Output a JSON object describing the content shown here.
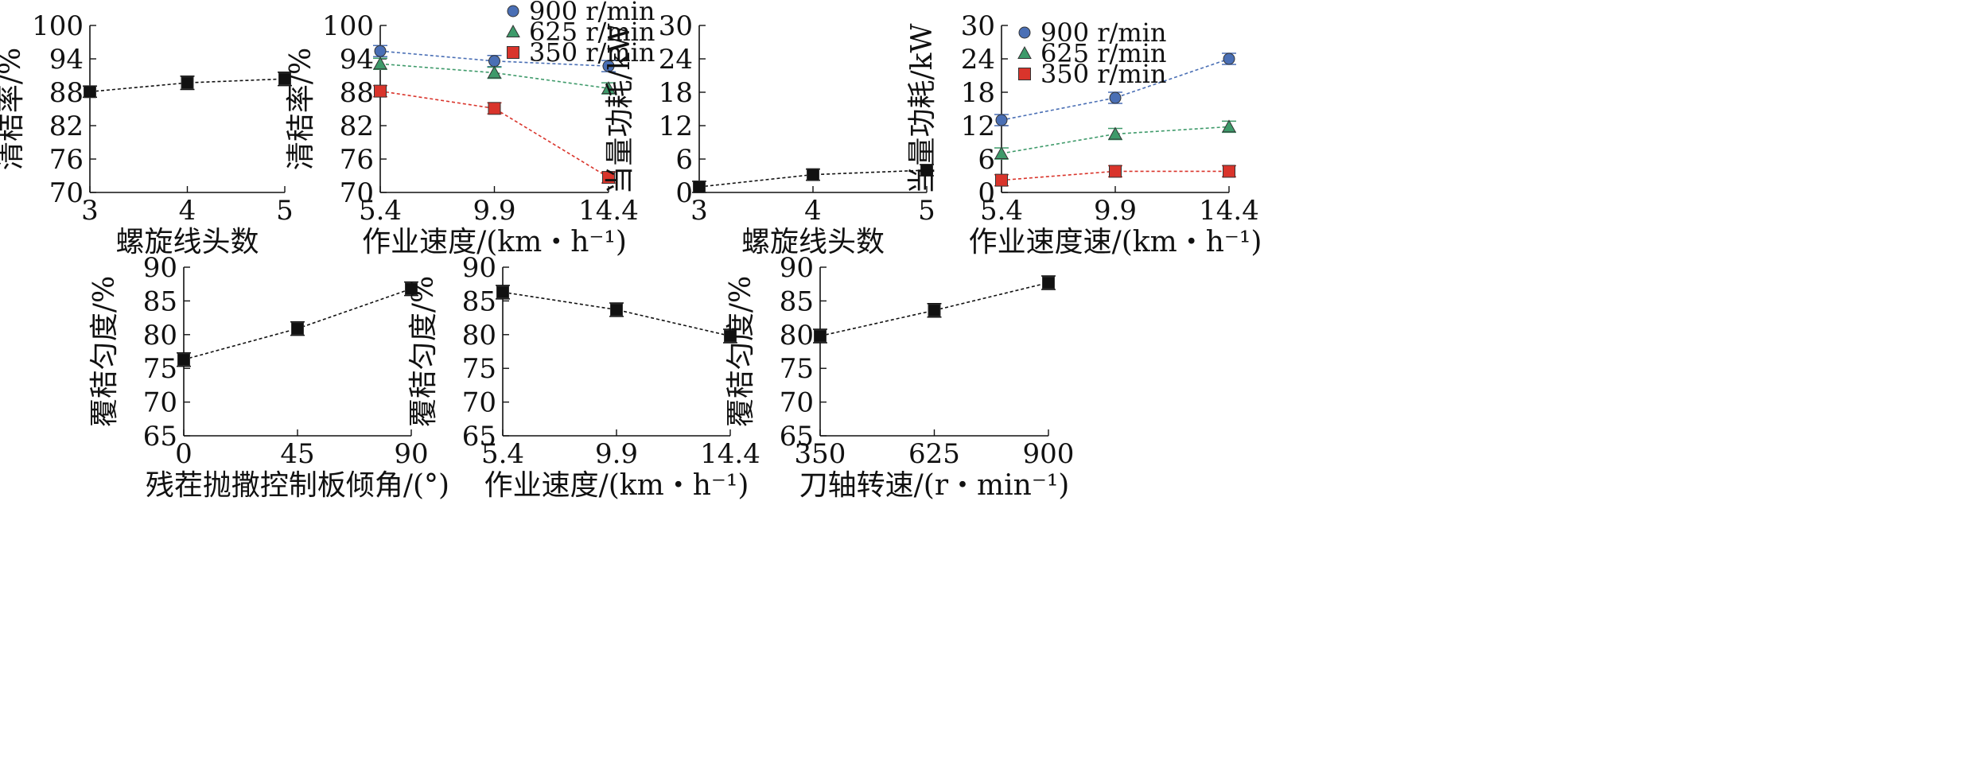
{
  "chart_data": [
    {
      "type": "line",
      "xlabel": "螺旋线头数",
      "ylabel": "清秸率/%",
      "x_ticks": [
        "3",
        "4",
        "5"
      ],
      "y_ticks": [
        "70",
        "76",
        "82",
        "88",
        "94",
        "100"
      ],
      "xlim": [
        3,
        5
      ],
      "ylim": [
        70,
        100
      ],
      "series": [
        {
          "x": [
            3,
            4,
            5
          ],
          "values": [
            88.1,
            89.7,
            90.4
          ],
          "errors": [
            1.0,
            1.2,
            1.2
          ],
          "color": "#111111",
          "marker": "square"
        }
      ]
    },
    {
      "type": "line",
      "xlabel": "作业速度/(km・h⁻¹)",
      "ylabel": "清秸率/%",
      "x_ticks": [
        "5.4",
        "9.9",
        "14.4"
      ],
      "y_ticks": [
        "70",
        "76",
        "82",
        "88",
        "94",
        "100"
      ],
      "xlim": [
        5.4,
        14.4
      ],
      "ylim": [
        70,
        100
      ],
      "legend_position": "top-right",
      "series": [
        {
          "name": "900 r/min",
          "x": [
            5.4,
            9.9,
            14.4
          ],
          "values": [
            95.4,
            93.6,
            92.7
          ],
          "errors": [
            1.0,
            1.0,
            1.0
          ],
          "color": "#4a6fb5",
          "marker": "circle"
        },
        {
          "name": "625 r/min",
          "x": [
            5.4,
            9.9,
            14.4
          ],
          "values": [
            93.1,
            91.5,
            88.7
          ],
          "errors": [
            1.0,
            1.0,
            1.0
          ],
          "color": "#3e9a6a",
          "marker": "triangle"
        },
        {
          "name": "350 r/min",
          "x": [
            5.4,
            9.9,
            14.4
          ],
          "values": [
            88.2,
            85.1,
            72.7
          ],
          "errors": [
            1.0,
            1.0,
            1.0
          ],
          "color": "#d9342b",
          "marker": "square"
        }
      ]
    },
    {
      "type": "line",
      "xlabel": "螺旋线头数",
      "ylabel": "当量功耗/kW",
      "x_ticks": [
        "3",
        "4",
        "5"
      ],
      "y_ticks": [
        "0",
        "6",
        "12",
        "18",
        "24",
        "30"
      ],
      "xlim": [
        3,
        5
      ],
      "ylim": [
        0,
        30
      ],
      "series": [
        {
          "x": [
            3,
            4,
            5
          ],
          "values": [
            1.0,
            3.2,
            4.0
          ],
          "errors": [
            1.0,
            1.0,
            1.0
          ],
          "color": "#111111",
          "marker": "square"
        }
      ]
    },
    {
      "type": "line",
      "xlabel": "作业速度速/(km・h⁻¹)",
      "ylabel": "当量功耗/kW",
      "x_ticks": [
        "5.4",
        "9.9",
        "14.4"
      ],
      "y_ticks": [
        "0",
        "6",
        "12",
        "18",
        "24",
        "30"
      ],
      "xlim": [
        5.4,
        14.4
      ],
      "ylim": [
        0,
        30
      ],
      "legend_position": "top-left",
      "series": [
        {
          "name": "900 r/min",
          "x": [
            5.4,
            9.9,
            14.4
          ],
          "values": [
            13.0,
            17.0,
            24.0
          ],
          "errors": [
            1.0,
            1.0,
            1.0
          ],
          "color": "#4a6fb5",
          "marker": "circle"
        },
        {
          "name": "625 r/min",
          "x": [
            5.4,
            9.9,
            14.4
          ],
          "values": [
            7.0,
            10.5,
            11.8
          ],
          "errors": [
            1.0,
            1.0,
            1.0
          ],
          "color": "#3e9a6a",
          "marker": "triangle"
        },
        {
          "name": "350 r/min",
          "x": [
            5.4,
            9.9,
            14.4
          ],
          "values": [
            2.2,
            3.8,
            3.8
          ],
          "errors": [
            1.0,
            1.0,
            1.0
          ],
          "color": "#d9342b",
          "marker": "square"
        }
      ]
    },
    {
      "type": "line",
      "xlabel": "残茬抛撒控制板倾角/(°)",
      "ylabel": "覆秸匀度/%",
      "x_ticks": [
        "0",
        "45",
        "90"
      ],
      "y_ticks": [
        "65",
        "70",
        "75",
        "80",
        "85",
        "90"
      ],
      "xlim": [
        0,
        90
      ],
      "ylim": [
        65,
        90
      ],
      "series": [
        {
          "x": [
            0,
            45,
            90
          ],
          "values": [
            76.3,
            80.9,
            86.8
          ],
          "errors": [
            1.0,
            1.0,
            1.0
          ],
          "color": "#111111",
          "marker": "square"
        }
      ]
    },
    {
      "type": "line",
      "xlabel": "作业速度/(km・h⁻¹)",
      "ylabel": "覆秸匀度/%",
      "x_ticks": [
        "5.4",
        "9.9",
        "14.4"
      ],
      "y_ticks": [
        "65",
        "70",
        "75",
        "80",
        "85",
        "90"
      ],
      "xlim": [
        5.4,
        14.4
      ],
      "ylim": [
        65,
        90
      ],
      "series": [
        {
          "x": [
            5.4,
            9.9,
            14.4
          ],
          "values": [
            86.3,
            83.7,
            79.8
          ],
          "errors": [
            1.0,
            1.0,
            1.0
          ],
          "color": "#111111",
          "marker": "square"
        }
      ]
    },
    {
      "type": "line",
      "xlabel": "刀轴转速/(r・min⁻¹)",
      "ylabel": "覆秸匀度/%",
      "x_ticks": [
        "350",
        "625",
        "900"
      ],
      "y_ticks": [
        "65",
        "70",
        "75",
        "80",
        "85",
        "90"
      ],
      "xlim": [
        350,
        900
      ],
      "ylim": [
        65,
        90
      ],
      "series": [
        {
          "x": [
            350,
            625,
            900
          ],
          "values": [
            79.8,
            83.6,
            87.7
          ],
          "errors": [
            1.0,
            1.0,
            1.0
          ],
          "color": "#111111",
          "marker": "square"
        }
      ]
    }
  ]
}
